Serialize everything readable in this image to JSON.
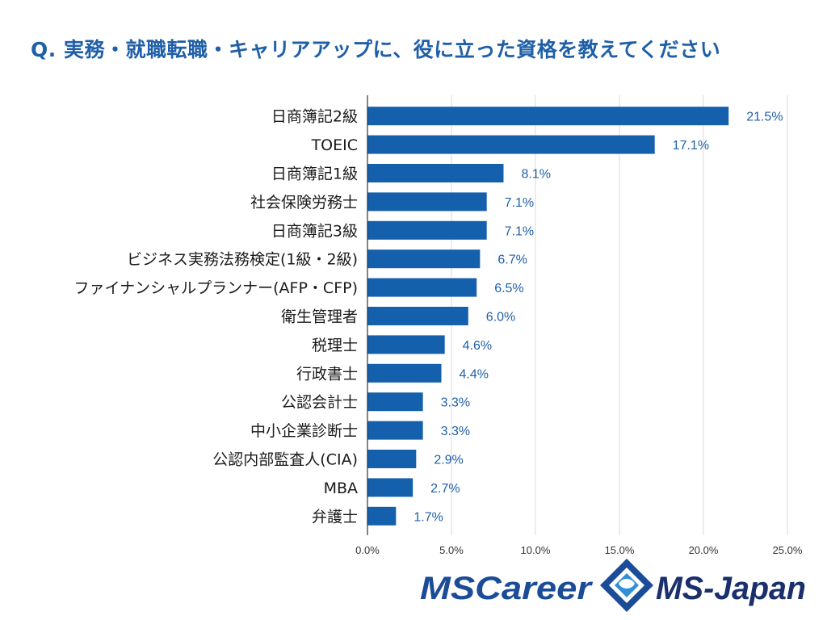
{
  "page": {
    "title": "Q. 実務・就職転職・キャリアアップに、役に立った資格を教えてください"
  },
  "colors": {
    "bar": "#1560ad",
    "value_text": "#1f5fa8",
    "title": "#1f5fa8",
    "grid": "#d9d9d9",
    "axis": "#333333"
  },
  "chart_data": {
    "type": "bar",
    "orientation": "horizontal",
    "title": "Q. 実務・就職転職・キャリアアップに、役に立った資格を教えてください",
    "xlabel": "",
    "ylabel": "",
    "categories": [
      "日商簿記2級",
      "TOEIC",
      "日商簿記1級",
      "社会保険労務士",
      "日商簿記3級",
      "ビジネス実務法務検定(1級・2級)",
      "ファイナンシャルプランナー(AFP・CFP)",
      "衛生管理者",
      "税理士",
      "行政書士",
      "公認会計士",
      "中小企業診断士",
      "公認内部監査人(CIA)",
      "MBA",
      "弁護士"
    ],
    "values": [
      21.5,
      17.1,
      8.1,
      7.1,
      7.1,
      6.7,
      6.5,
      6.0,
      4.6,
      4.4,
      3.3,
      3.3,
      2.9,
      2.7,
      1.7
    ],
    "value_labels": [
      "21.5%",
      "17.1%",
      "8.1%",
      "7.1%",
      "7.1%",
      "6.7%",
      "6.5%",
      "6.0%",
      "4.6%",
      "4.4%",
      "3.3%",
      "3.3%",
      "2.9%",
      "2.7%",
      "1.7%"
    ],
    "xlim": [
      0,
      25
    ],
    "x_ticks": [
      0,
      5,
      10,
      15,
      20,
      25
    ],
    "x_tick_labels": [
      "0.0%",
      "5.0%",
      "10.0%",
      "15.0%",
      "20.0%",
      "25.0%"
    ],
    "grid": true,
    "legend": "none"
  },
  "logos": {
    "mscareer": {
      "text": "MSCareer"
    },
    "msjapan": {
      "text": "MS-Japan"
    }
  }
}
